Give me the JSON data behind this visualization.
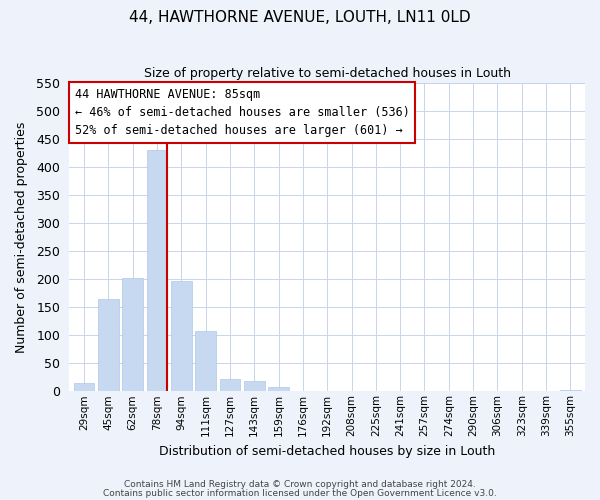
{
  "title": "44, HAWTHORNE AVENUE, LOUTH, LN11 0LD",
  "subtitle": "Size of property relative to semi-detached houses in Louth",
  "xlabel": "Distribution of semi-detached houses by size in Louth",
  "ylabel": "Number of semi-detached properties",
  "categories": [
    "29sqm",
    "45sqm",
    "62sqm",
    "78sqm",
    "94sqm",
    "111sqm",
    "127sqm",
    "143sqm",
    "159sqm",
    "176sqm",
    "192sqm",
    "208sqm",
    "225sqm",
    "241sqm",
    "257sqm",
    "274sqm",
    "290sqm",
    "306sqm",
    "323sqm",
    "339sqm",
    "355sqm"
  ],
  "values": [
    15,
    165,
    203,
    430,
    197,
    107,
    22,
    18,
    7,
    0,
    0,
    0,
    0,
    0,
    0,
    0,
    0,
    0,
    0,
    0,
    3
  ],
  "bar_color": "#c6d9f0",
  "bar_edge_color": "#aec8e8",
  "vline_index": 3,
  "vline_color": "#cc0000",
  "ylim": [
    0,
    550
  ],
  "yticks": [
    0,
    50,
    100,
    150,
    200,
    250,
    300,
    350,
    400,
    450,
    500,
    550
  ],
  "annotation_title": "44 HAWTHORNE AVENUE: 85sqm",
  "annotation_line1": "← 46% of semi-detached houses are smaller (536)",
  "annotation_line2": "52% of semi-detached houses are larger (601) →",
  "footnote1": "Contains HM Land Registry data © Crown copyright and database right 2024.",
  "footnote2": "Contains public sector information licensed under the Open Government Licence v3.0.",
  "bg_color": "#eef2fb",
  "plot_bg_color": "#ffffff",
  "grid_color": "#c8d4e8"
}
